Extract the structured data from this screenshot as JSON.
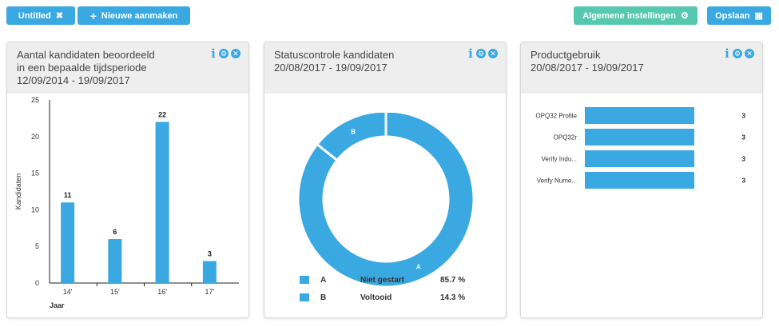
{
  "toolbar": {
    "untitled_label": "Untitled",
    "untitled_icon": "✖",
    "new_label": "Nieuwe aanmaken",
    "new_icon": "+",
    "settings_label": "Algemene instellingen",
    "settings_icon": "⚙",
    "save_label": "Opslaan",
    "save_icon": "▣"
  },
  "colors": {
    "accent": "#3aa9e1",
    "teal": "#56c8b0",
    "header_bg": "#eeeeee"
  },
  "cards": [
    {
      "title_line1": "Aantal kandidaten beoordeeld",
      "title_line2": "in een bepaalde tijdsperiode",
      "period": "12/09/2014 - 19/09/2017",
      "icon_info": "i",
      "icon_gear": "⚙",
      "icon_close": "✕"
    },
    {
      "title_line1": "Statuscontrole kandidaten",
      "period": "20/08/2017 - 19/09/2017",
      "icon_info": "i",
      "icon_gear": "⚙",
      "icon_close": "✕"
    },
    {
      "title_line1": "Productgebruik",
      "period": "20/08/2017 - 19/09/2017",
      "icon_info": "i",
      "icon_gear": "⚙",
      "icon_close": "✕"
    }
  ],
  "chart_data": [
    {
      "type": "bar",
      "categories": [
        "14'",
        "15'",
        "16'",
        "17'"
      ],
      "values": [
        11,
        6,
        22,
        3
      ],
      "ylabel": "Kandidaten",
      "xlabel": "Jaar",
      "ylim": [
        0,
        25
      ],
      "yticks": [
        0,
        5,
        10,
        15,
        20,
        25
      ],
      "data_labels": true,
      "color": "#3aa9e1"
    },
    {
      "type": "pie",
      "donut": true,
      "slices": [
        {
          "label": "A",
          "name": "Niet gestart",
          "value": 85.7,
          "pct": "85.7 %"
        },
        {
          "label": "B",
          "name": "Voltooid",
          "value": 14.3,
          "pct": "14.3 %"
        }
      ],
      "color": "#3aa9e1",
      "legend": "bottom"
    },
    {
      "type": "bar",
      "orientation": "horizontal",
      "categories": [
        "OPQ32 Profile",
        "OPQ32r",
        "Verify Indu...",
        "Verify Nume..."
      ],
      "values": [
        3,
        3,
        3,
        3
      ],
      "data_labels": true,
      "color": "#3aa9e1"
    }
  ]
}
